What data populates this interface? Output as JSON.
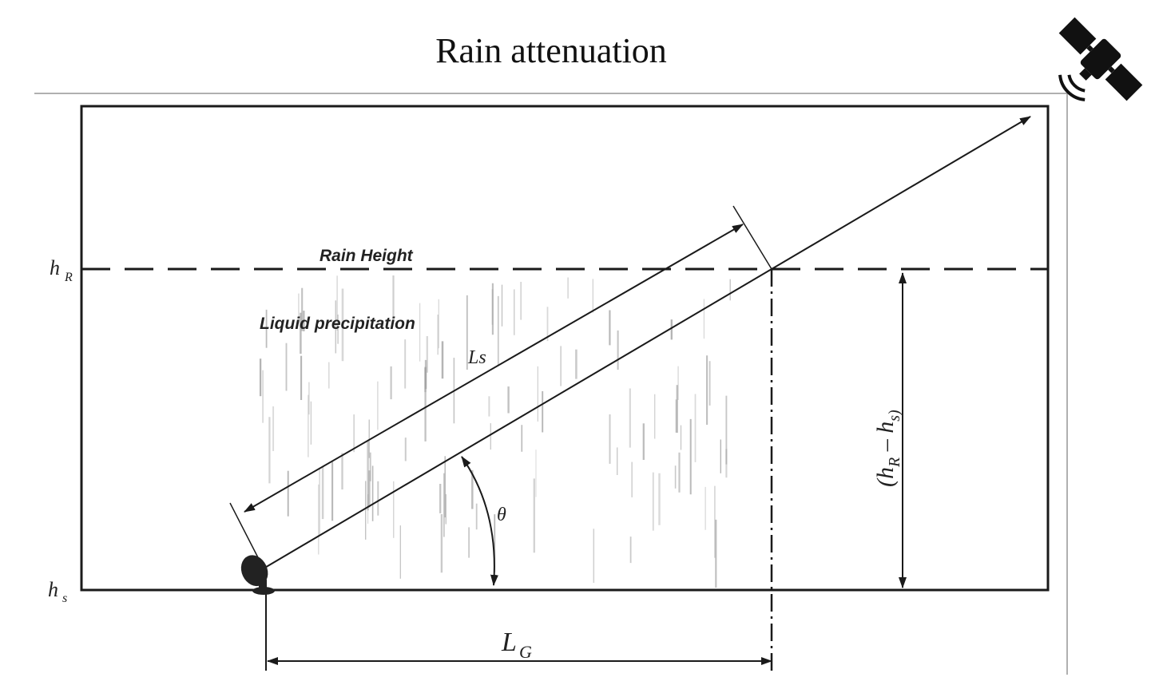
{
  "title": "Rain attenuation",
  "labels": {
    "h_r": "h",
    "h_r_sub": "R",
    "h_s": "h",
    "h_s_sub": "s",
    "rain_height": "Rain Height",
    "liquid_precipitation": "Liquid precipitation",
    "slant_path": "Ls",
    "theta": "θ",
    "ground_projection": "L",
    "ground_projection_sub": "G",
    "height_difference": "(h",
    "height_difference_mid": "R",
    "height_difference_dash": " – h",
    "height_difference_end": "s)"
  },
  "icons": {
    "satellite": "satellite-icon",
    "ground_antenna": "dish-antenna-icon"
  },
  "colors": {
    "ink": "#1a1a1a",
    "rain": "#9a9a9a",
    "frame_gray": "#b0b0b0"
  }
}
